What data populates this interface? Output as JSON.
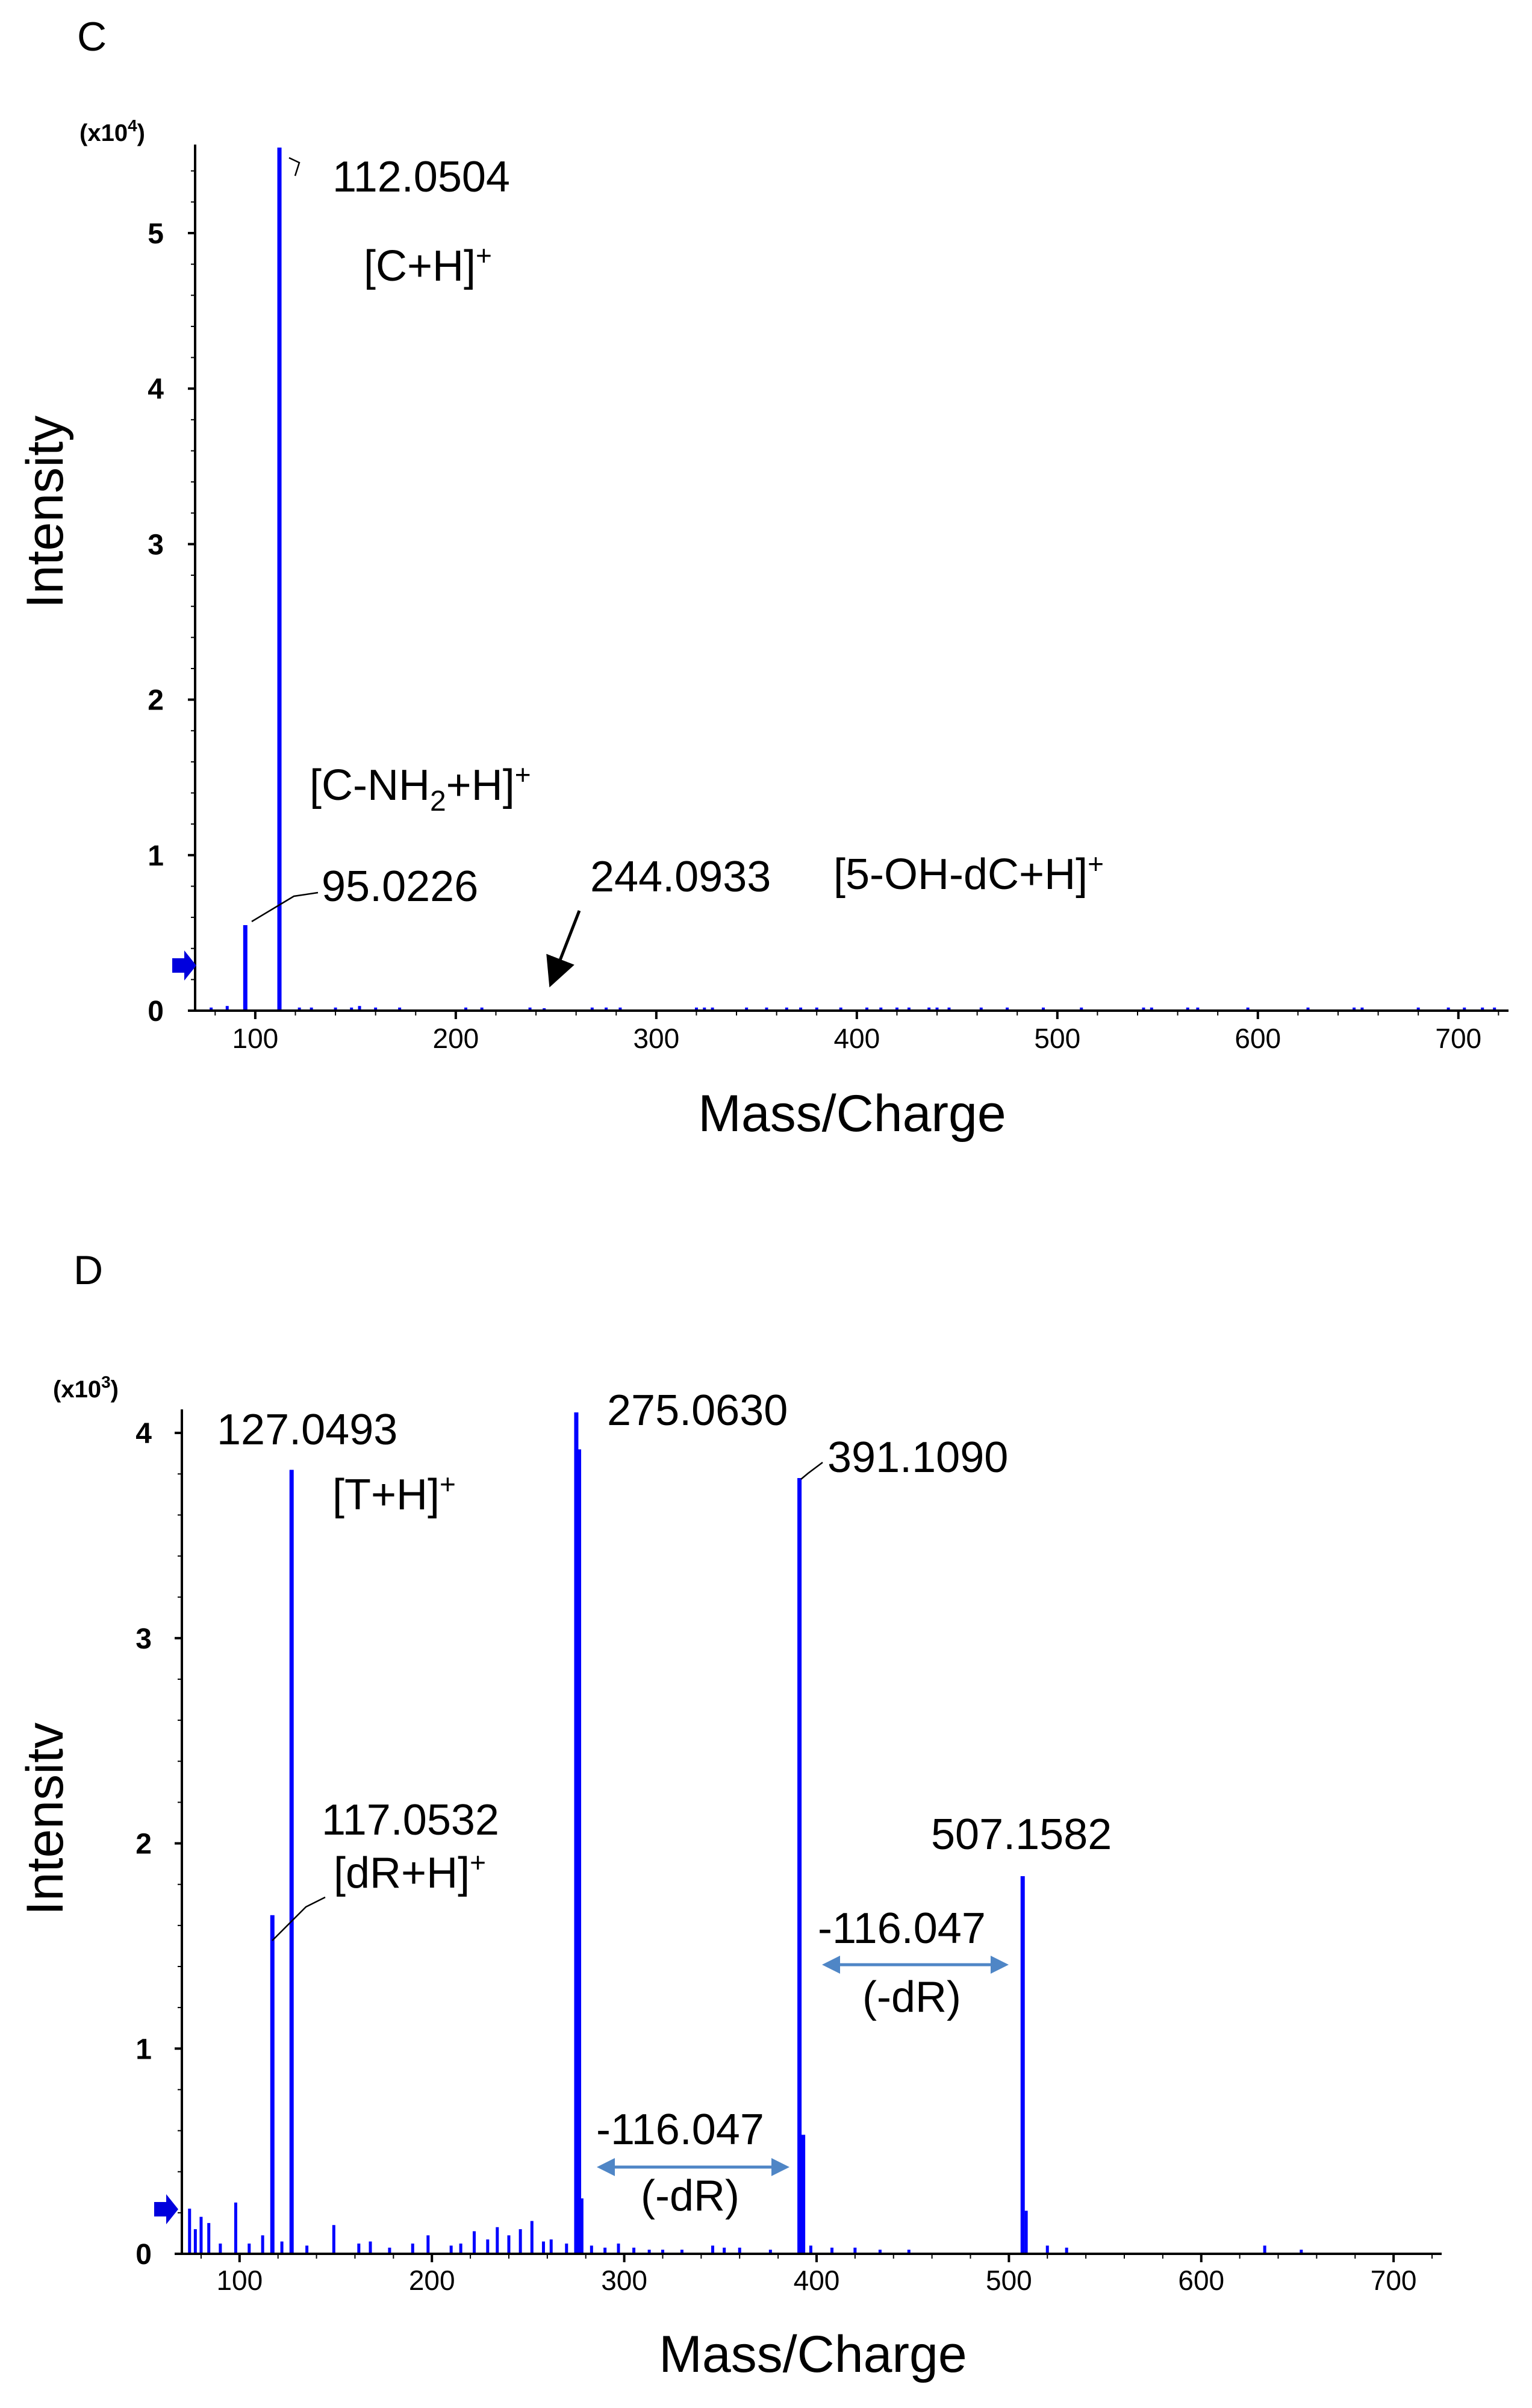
{
  "chart_data": [
    {
      "type": "bar",
      "panel_label": "C",
      "multiplier": "(x10",
      "multiplier_exp": "4",
      "multiplier_close": ")",
      "xlabel": "Mass/Charge",
      "ylabel": "Intensity",
      "xlim": [
        70,
        725
      ],
      "ylim": [
        0,
        5.55
      ],
      "x_ticks": [
        100,
        200,
        300,
        400,
        500,
        600,
        700
      ],
      "y_ticks": [
        0,
        1,
        2,
        3,
        4,
        5
      ],
      "threshold_marker_value": 0.3,
      "colors": {
        "peaks": "#0000ff",
        "arrow_marker": "#0000dd"
      },
      "peaks": [
        {
          "x": 95.0226,
          "y": 0.55
        },
        {
          "x": 112.0504,
          "y": 5.55
        },
        {
          "x": 78,
          "y": 0.02
        },
        {
          "x": 86,
          "y": 0.03
        },
        {
          "x": 122,
          "y": 0.02
        },
        {
          "x": 128,
          "y": 0.02
        },
        {
          "x": 140,
          "y": 0.02
        },
        {
          "x": 148,
          "y": 0.02
        },
        {
          "x": 152,
          "y": 0.03
        },
        {
          "x": 160,
          "y": 0.02
        },
        {
          "x": 172,
          "y": 0.02
        },
        {
          "x": 205,
          "y": 0.02
        },
        {
          "x": 213,
          "y": 0.02
        },
        {
          "x": 237,
          "y": 0.02
        },
        {
          "x": 244.0933,
          "y": 0.01
        },
        {
          "x": 268,
          "y": 0.02
        },
        {
          "x": 275,
          "y": 0.02
        },
        {
          "x": 282,
          "y": 0.02
        },
        {
          "x": 320,
          "y": 0.02
        },
        {
          "x": 324,
          "y": 0.02
        },
        {
          "x": 328,
          "y": 0.02
        },
        {
          "x": 345,
          "y": 0.02
        },
        {
          "x": 355,
          "y": 0.02
        },
        {
          "x": 365,
          "y": 0.02
        },
        {
          "x": 372,
          "y": 0.02
        },
        {
          "x": 380,
          "y": 0.02
        },
        {
          "x": 392,
          "y": 0.02
        },
        {
          "x": 405,
          "y": 0.02
        },
        {
          "x": 412,
          "y": 0.02
        },
        {
          "x": 420,
          "y": 0.02
        },
        {
          "x": 426,
          "y": 0.02
        },
        {
          "x": 436,
          "y": 0.02
        },
        {
          "x": 440,
          "y": 0.02
        },
        {
          "x": 446,
          "y": 0.02
        },
        {
          "x": 462,
          "y": 0.02
        },
        {
          "x": 475,
          "y": 0.02
        },
        {
          "x": 493,
          "y": 0.02
        },
        {
          "x": 512,
          "y": 0.02
        },
        {
          "x": 543,
          "y": 0.02
        },
        {
          "x": 547,
          "y": 0.02
        },
        {
          "x": 565,
          "y": 0.02
        },
        {
          "x": 570,
          "y": 0.02
        },
        {
          "x": 595,
          "y": 0.02
        },
        {
          "x": 625,
          "y": 0.02
        },
        {
          "x": 648,
          "y": 0.02
        },
        {
          "x": 652,
          "y": 0.02
        },
        {
          "x": 680,
          "y": 0.02
        },
        {
          "x": 695,
          "y": 0.02
        },
        {
          "x": 703,
          "y": 0.02
        },
        {
          "x": 712,
          "y": 0.02
        },
        {
          "x": 718,
          "y": 0.02
        }
      ],
      "annotations": [
        {
          "label": "112.0504"
        },
        {
          "label": "[C+H]",
          "sup": "+"
        },
        {
          "label": "[C-NH",
          "sub": "2",
          "label2": "+H]",
          "sup": "+"
        },
        {
          "label": "95.0226"
        },
        {
          "label": "244.0933"
        },
        {
          "label": "[5-OH-dC+H]",
          "sup": "+"
        }
      ]
    },
    {
      "type": "bar",
      "panel_label": "D",
      "multiplier": "(x10",
      "multiplier_exp": "3",
      "multiplier_close": ")",
      "xlabel": "Mass/Charge",
      "ylabel": "Intensitv",
      "xlim": [
        70,
        725
      ],
      "ylim": [
        0,
        4.1
      ],
      "x_ticks": [
        100,
        200,
        300,
        400,
        500,
        600,
        700
      ],
      "y_ticks": [
        0,
        1,
        2,
        3,
        4
      ],
      "threshold_marker_value": 0.22,
      "colors": {
        "peaks": "#0000ff",
        "arrow_marker": "#0000dd",
        "double_arrow": "#4f86c6"
      },
      "peaks": [
        {
          "x": 117.0532,
          "y": 1.65
        },
        {
          "x": 127.0493,
          "y": 3.82
        },
        {
          "x": 275.063,
          "y": 4.1
        },
        {
          "x": 276.5,
          "y": 3.92
        },
        {
          "x": 391.109,
          "y": 3.78
        },
        {
          "x": 393,
          "y": 0.58
        },
        {
          "x": 507.1582,
          "y": 1.84
        },
        {
          "x": 74,
          "y": 0.22
        },
        {
          "x": 77,
          "y": 0.12
        },
        {
          "x": 80,
          "y": 0.18
        },
        {
          "x": 84,
          "y": 0.15
        },
        {
          "x": 90,
          "y": 0.05
        },
        {
          "x": 98,
          "y": 0.25
        },
        {
          "x": 105,
          "y": 0.05
        },
        {
          "x": 112,
          "y": 0.09
        },
        {
          "x": 122,
          "y": 0.06
        },
        {
          "x": 135,
          "y": 0.04
        },
        {
          "x": 149,
          "y": 0.14
        },
        {
          "x": 162,
          "y": 0.05
        },
        {
          "x": 168,
          "y": 0.06
        },
        {
          "x": 178,
          "y": 0.03
        },
        {
          "x": 190,
          "y": 0.05
        },
        {
          "x": 198,
          "y": 0.09
        },
        {
          "x": 210,
          "y": 0.04
        },
        {
          "x": 215,
          "y": 0.05
        },
        {
          "x": 222,
          "y": 0.11
        },
        {
          "x": 229,
          "y": 0.07
        },
        {
          "x": 234,
          "y": 0.13
        },
        {
          "x": 240,
          "y": 0.09
        },
        {
          "x": 246,
          "y": 0.12
        },
        {
          "x": 252,
          "y": 0.16
        },
        {
          "x": 258,
          "y": 0.06
        },
        {
          "x": 262,
          "y": 0.07
        },
        {
          "x": 270,
          "y": 0.05
        },
        {
          "x": 278,
          "y": 0.27
        },
        {
          "x": 283,
          "y": 0.04
        },
        {
          "x": 290,
          "y": 0.03
        },
        {
          "x": 297,
          "y": 0.05
        },
        {
          "x": 305,
          "y": 0.03
        },
        {
          "x": 313,
          "y": 0.02
        },
        {
          "x": 320,
          "y": 0.02
        },
        {
          "x": 330,
          "y": 0.02
        },
        {
          "x": 346,
          "y": 0.04
        },
        {
          "x": 352,
          "y": 0.03
        },
        {
          "x": 360,
          "y": 0.03
        },
        {
          "x": 376,
          "y": 0.02
        },
        {
          "x": 397,
          "y": 0.04
        },
        {
          "x": 408,
          "y": 0.03
        },
        {
          "x": 420,
          "y": 0.03
        },
        {
          "x": 433,
          "y": 0.02
        },
        {
          "x": 448,
          "y": 0.02
        },
        {
          "x": 509,
          "y": 0.21
        },
        {
          "x": 520,
          "y": 0.04
        },
        {
          "x": 530,
          "y": 0.03
        },
        {
          "x": 633,
          "y": 0.04
        },
        {
          "x": 652,
          "y": 0.02
        }
      ],
      "annotations": [
        {
          "label": "127.0493"
        },
        {
          "label": "[T+H]",
          "sup": "+"
        },
        {
          "label": "275.0630"
        },
        {
          "label": "391.1090"
        },
        {
          "label": "117.0532"
        },
        {
          "label": "[dR+H]",
          "sup": "+"
        },
        {
          "label": "507.1582"
        },
        {
          "label": "-116.047",
          "sub_label": "(-dR)"
        },
        {
          "label": "-116.047",
          "sub_label": "(-dR)"
        }
      ]
    }
  ]
}
